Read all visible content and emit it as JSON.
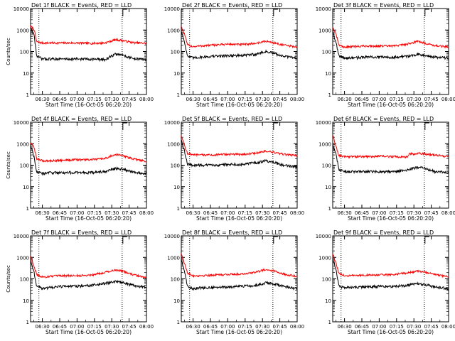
{
  "chart_data": [
    {
      "type": "line",
      "title": "Det 1f BLACK = Events, RED = LLD",
      "xlabel": "Start Time (16-Oct-05 06:20:20)",
      "ylabel": "Counts/sec",
      "y_scale": "log",
      "ylim": [
        1,
        10000
      ],
      "xlim": [
        6.33,
        8.0
      ],
      "x_ticks": [
        "06:30",
        "06:45",
        "07:00",
        "07:15",
        "07:30",
        "07:45",
        "08:00"
      ],
      "y_ticks": [
        "1",
        "10",
        "100",
        "1000",
        "10000"
      ],
      "markers": [
        6.45,
        7.65
      ],
      "series": [
        {
          "color": "#ff0000",
          "values_at": [
            6.33,
            6.38,
            6.42,
            6.5,
            6.6,
            6.8,
            7.0,
            7.2,
            7.4,
            7.55,
            7.65,
            7.8,
            8.0
          ],
          "values": [
            1500,
            1100,
            280,
            250,
            250,
            250,
            250,
            240,
            250,
            350,
            330,
            260,
            240
          ]
        },
        {
          "color": "#000000",
          "values_at": [
            6.33,
            6.38,
            6.42,
            6.5,
            6.6,
            6.8,
            7.0,
            7.2,
            7.4,
            7.55,
            7.65,
            7.8,
            8.0
          ],
          "values": [
            1300,
            600,
            60,
            45,
            45,
            45,
            45,
            45,
            42,
            75,
            70,
            48,
            42
          ]
        }
      ]
    },
    {
      "type": "line",
      "title": "Det 2f BLACK = Events, RED = LLD",
      "xlabel": "Start Time (16-Oct-05 06:20:20)",
      "ylabel": "",
      "y_scale": "log",
      "ylim": [
        1,
        10000
      ],
      "xlim": [
        6.33,
        8.0
      ],
      "x_ticks": [
        "06:30",
        "06:45",
        "07:00",
        "07:15",
        "07:30",
        "07:45",
        "08:00"
      ],
      "y_ticks": [
        "1",
        "10",
        "100",
        "1000",
        "10000"
      ],
      "markers": [
        6.45,
        7.65
      ],
      "series": [
        {
          "color": "#ff0000",
          "values_at": [
            6.33,
            6.38,
            6.42,
            6.5,
            6.6,
            6.8,
            7.0,
            7.2,
            7.4,
            7.55,
            7.65,
            7.8,
            8.0
          ],
          "values": [
            1500,
            600,
            200,
            170,
            180,
            200,
            220,
            210,
            240,
            300,
            260,
            200,
            160
          ]
        },
        {
          "color": "#000000",
          "values_at": [
            6.33,
            6.38,
            6.42,
            6.5,
            6.6,
            6.8,
            7.0,
            7.2,
            7.4,
            7.55,
            7.65,
            7.8,
            8.0
          ],
          "values": [
            900,
            250,
            60,
            50,
            55,
            60,
            65,
            65,
            75,
            100,
            85,
            60,
            50
          ]
        }
      ]
    },
    {
      "type": "line",
      "title": "Det 3f BLACK = Events, RED = LLD",
      "xlabel": "Start Time (16-Oct-05 06:20:20)",
      "ylabel": "",
      "y_scale": "log",
      "ylim": [
        1,
        10000
      ],
      "xlim": [
        6.33,
        8.0
      ],
      "x_ticks": [
        "06:30",
        "06:45",
        "07:00",
        "07:15",
        "07:30",
        "07:45",
        "08:00"
      ],
      "y_ticks": [
        "1",
        "10",
        "100",
        "1000",
        "10000"
      ],
      "markers": [
        6.45,
        7.65
      ],
      "series": [
        {
          "color": "#ff0000",
          "values_at": [
            6.33,
            6.38,
            6.42,
            6.5,
            6.6,
            6.8,
            7.0,
            7.2,
            7.4,
            7.55,
            7.65,
            7.8,
            8.0
          ],
          "values": [
            1400,
            600,
            200,
            160,
            170,
            180,
            180,
            180,
            220,
            300,
            250,
            190,
            160
          ]
        },
        {
          "color": "#000000",
          "values_at": [
            6.33,
            6.38,
            6.42,
            6.5,
            6.6,
            6.8,
            7.0,
            7.2,
            7.4,
            7.55,
            7.65,
            7.8,
            8.0
          ],
          "values": [
            900,
            250,
            60,
            50,
            50,
            55,
            55,
            55,
            60,
            75,
            70,
            55,
            50
          ]
        }
      ]
    },
    {
      "type": "line",
      "title": "Det 4f BLACK = Events, RED = LLD",
      "xlabel": "Start Time (16-Oct-05 06:20:20)",
      "ylabel": "Counts/sec",
      "y_scale": "log",
      "ylim": [
        1,
        10000
      ],
      "xlim": [
        6.33,
        8.0
      ],
      "x_ticks": [
        "06:30",
        "06:45",
        "07:00",
        "07:15",
        "07:30",
        "07:45",
        "08:00"
      ],
      "y_ticks": [
        "1",
        "10",
        "100",
        "1000",
        "10000"
      ],
      "markers": [
        6.45,
        7.65
      ],
      "series": [
        {
          "color": "#ff0000",
          "values_at": [
            6.33,
            6.38,
            6.42,
            6.5,
            6.6,
            6.8,
            7.0,
            7.2,
            7.4,
            7.55,
            7.65,
            7.8,
            8.0
          ],
          "values": [
            1100,
            700,
            200,
            160,
            160,
            170,
            180,
            180,
            200,
            320,
            280,
            200,
            150
          ]
        },
        {
          "color": "#000000",
          "values_at": [
            6.33,
            6.38,
            6.42,
            6.5,
            6.6,
            6.8,
            7.0,
            7.2,
            7.4,
            7.55,
            7.65,
            7.8,
            8.0
          ],
          "values": [
            900,
            250,
            50,
            40,
            45,
            45,
            45,
            45,
            50,
            70,
            65,
            50,
            40
          ]
        }
      ]
    },
    {
      "type": "line",
      "title": "Det 5f BLACK = Events, RED = LLD",
      "xlabel": "Start Time (16-Oct-05 06:20:20)",
      "ylabel": "",
      "y_scale": "log",
      "ylim": [
        1,
        10000
      ],
      "xlim": [
        6.33,
        8.0
      ],
      "x_ticks": [
        "06:30",
        "06:45",
        "07:00",
        "07:15",
        "07:30",
        "07:45",
        "08:00"
      ],
      "y_ticks": [
        "1",
        "10",
        "100",
        "1000",
        "10000"
      ],
      "markers": [
        6.45,
        7.65
      ],
      "series": [
        {
          "color": "#ff0000",
          "values_at": [
            6.33,
            6.38,
            6.42,
            6.5,
            6.6,
            6.8,
            7.0,
            7.2,
            7.4,
            7.55,
            7.65,
            7.8,
            8.0
          ],
          "values": [
            2500,
            800,
            350,
            300,
            300,
            300,
            320,
            320,
            360,
            450,
            400,
            320,
            280
          ]
        },
        {
          "color": "#000000",
          "values_at": [
            6.33,
            6.38,
            6.42,
            6.5,
            6.6,
            6.8,
            7.0,
            7.2,
            7.4,
            7.55,
            7.65,
            7.8,
            8.0
          ],
          "values": [
            1500,
            400,
            110,
            100,
            100,
            100,
            110,
            110,
            130,
            160,
            140,
            100,
            80
          ]
        }
      ]
    },
    {
      "type": "line",
      "title": "Det 6f BLACK = Events, RED = LLD",
      "xlabel": "Start Time (16-Oct-05 06:20:20)",
      "ylabel": "",
      "y_scale": "log",
      "ylim": [
        1,
        10000
      ],
      "xlim": [
        6.33,
        8.0
      ],
      "x_ticks": [
        "06:30",
        "06:45",
        "07:00",
        "07:15",
        "07:30",
        "07:45",
        "08:00"
      ],
      "y_ticks": [
        "1",
        "10",
        "100",
        "1000",
        "10000"
      ],
      "markers": [
        6.45,
        7.65
      ],
      "series": [
        {
          "color": "#ff0000",
          "values_at": [
            6.33,
            6.38,
            6.42,
            6.5,
            6.6,
            6.8,
            7.0,
            7.2,
            7.4,
            7.44,
            7.6,
            7.8,
            8.0
          ],
          "values": [
            2500,
            700,
            280,
            250,
            250,
            250,
            260,
            250,
            240,
            330,
            350,
            300,
            250
          ]
        },
        {
          "color": "#000000",
          "values_at": [
            6.33,
            6.38,
            6.42,
            6.5,
            6.6,
            6.8,
            7.0,
            7.2,
            7.4,
            7.55,
            7.65,
            7.8,
            8.0
          ],
          "values": [
            800,
            300,
            60,
            50,
            50,
            50,
            50,
            50,
            60,
            80,
            75,
            50,
            45
          ]
        }
      ]
    },
    {
      "type": "line",
      "title": "Det 7f BLACK = Events, RED = LLD",
      "xlabel": "Start Time (16-Oct-05 06:20:20)",
      "ylabel": "Counts/sec",
      "y_scale": "log",
      "ylim": [
        1,
        10000
      ],
      "xlim": [
        6.33,
        8.0
      ],
      "x_ticks": [
        "06:30",
        "06:45",
        "07:00",
        "07:15",
        "07:30",
        "07:45",
        "08:00"
      ],
      "y_ticks": [
        "1",
        "10",
        "100",
        "1000",
        "10000"
      ],
      "markers": [
        6.45,
        7.65
      ],
      "series": [
        {
          "color": "#ff0000",
          "values_at": [
            6.33,
            6.38,
            6.42,
            6.5,
            6.6,
            6.8,
            7.0,
            7.2,
            7.4,
            7.55,
            7.65,
            7.8,
            8.0
          ],
          "values": [
            1200,
            400,
            160,
            120,
            130,
            140,
            140,
            150,
            200,
            260,
            230,
            160,
            110
          ]
        },
        {
          "color": "#000000",
          "values_at": [
            6.33,
            6.38,
            6.42,
            6.5,
            6.6,
            6.8,
            7.0,
            7.2,
            7.4,
            7.55,
            7.65,
            7.8,
            8.0
          ],
          "values": [
            700,
            200,
            45,
            35,
            40,
            45,
            45,
            50,
            60,
            75,
            70,
            50,
            40
          ]
        }
      ]
    },
    {
      "type": "line",
      "title": "Det 8f BLACK = Events, RED = LLD",
      "xlabel": "Start Time (16-Oct-05 06:20:20)",
      "ylabel": "",
      "y_scale": "log",
      "ylim": [
        1,
        10000
      ],
      "xlim": [
        6.33,
        8.0
      ],
      "x_ticks": [
        "06:30",
        "06:45",
        "07:00",
        "07:15",
        "07:30",
        "07:45",
        "08:00"
      ],
      "y_ticks": [
        "1",
        "10",
        "100",
        "1000",
        "10000"
      ],
      "markers": [
        6.45,
        7.65
      ],
      "series": [
        {
          "color": "#ff0000",
          "values_at": [
            6.33,
            6.38,
            6.42,
            6.5,
            6.6,
            6.8,
            7.0,
            7.2,
            7.4,
            7.55,
            7.65,
            7.8,
            8.0
          ],
          "values": [
            1500,
            500,
            180,
            140,
            140,
            150,
            160,
            170,
            200,
            280,
            240,
            170,
            130
          ]
        },
        {
          "color": "#000000",
          "values_at": [
            6.33,
            6.38,
            6.42,
            6.5,
            6.6,
            6.8,
            7.0,
            7.2,
            7.4,
            7.55,
            7.65,
            7.8,
            8.0
          ],
          "values": [
            800,
            200,
            45,
            35,
            38,
            40,
            42,
            45,
            50,
            65,
            60,
            45,
            35
          ]
        }
      ]
    },
    {
      "type": "line",
      "title": "Det 9f BLACK = Events, RED = LLD",
      "xlabel": "Start Time (16-Oct-05 06:20:20)",
      "ylabel": "",
      "y_scale": "log",
      "ylim": [
        1,
        10000
      ],
      "xlim": [
        6.33,
        8.0
      ],
      "x_ticks": [
        "06:30",
        "06:45",
        "07:00",
        "07:15",
        "07:30",
        "07:45",
        "08:00"
      ],
      "y_ticks": [
        "1",
        "10",
        "100",
        "1000",
        "10000"
      ],
      "markers": [
        6.45,
        7.65
      ],
      "series": [
        {
          "color": "#ff0000",
          "values_at": [
            6.33,
            6.38,
            6.42,
            6.5,
            6.6,
            6.8,
            7.0,
            7.2,
            7.4,
            7.55,
            7.65,
            7.8,
            8.0
          ],
          "values": [
            1500,
            500,
            180,
            140,
            140,
            150,
            150,
            160,
            190,
            230,
            210,
            160,
            120
          ]
        },
        {
          "color": "#000000",
          "values_at": [
            6.33,
            6.38,
            6.42,
            6.5,
            6.6,
            6.8,
            7.0,
            7.2,
            7.4,
            7.55,
            7.65,
            7.8,
            8.0
          ],
          "values": [
            900,
            250,
            45,
            38,
            40,
            42,
            45,
            45,
            50,
            60,
            55,
            42,
            35
          ]
        }
      ]
    }
  ]
}
